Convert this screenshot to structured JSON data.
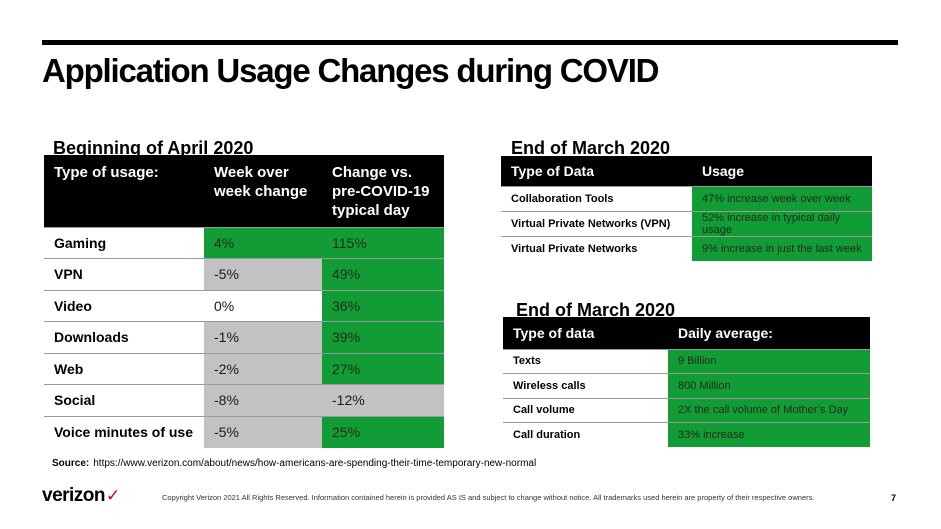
{
  "title": "Application Usage Changes during COVID",
  "april_section": {
    "title": "Beginning of April 2020",
    "headers": [
      "Type of usage:",
      "Week over week change",
      "Change vs. pre-COVID-19 typical day"
    ],
    "rows": [
      {
        "type": "Gaming",
        "wow": "4%",
        "vs": "115%",
        "wow_color": "green",
        "vs_color": "green"
      },
      {
        "type": "VPN",
        "wow": "-5%",
        "vs": "49%",
        "wow_color": "gray",
        "vs_color": "green"
      },
      {
        "type": "Video",
        "wow": "0%",
        "vs": "36%",
        "wow_color": "white",
        "vs_color": "green"
      },
      {
        "type": "Downloads",
        "wow": "-1%",
        "vs": "39%",
        "wow_color": "gray",
        "vs_color": "green"
      },
      {
        "type": "Web",
        "wow": "-2%",
        "vs": "27%",
        "wow_color": "gray",
        "vs_color": "green"
      },
      {
        "type": "Social",
        "wow": "-8%",
        "vs": "-12%",
        "wow_color": "gray",
        "vs_color": "gray"
      },
      {
        "type": "Voice minutes of use",
        "wow": "-5%",
        "vs": "25%",
        "wow_color": "gray",
        "vs_color": "green"
      }
    ]
  },
  "march_data_section": {
    "title": "End of March 2020",
    "headers": [
      "Type of Data",
      "Usage"
    ],
    "rows": [
      {
        "type": "Collaboration Tools",
        "usage": "47% increase week over week"
      },
      {
        "type": "Virtual Private Networks (VPN)",
        "usage": "52% increase in typical daily usage"
      },
      {
        "type": "Virtual Private Networks",
        "usage": "9% increase in just the last week"
      }
    ]
  },
  "march_daily_section": {
    "title": "End of March 2020",
    "headers": [
      "Type of data",
      "Daily average:"
    ],
    "rows": [
      {
        "type": "Texts",
        "value": "9 Billion"
      },
      {
        "type": "Wireless calls",
        "value": "800 Million"
      },
      {
        "type": "Call volume",
        "value": "2X the call volume of Mother’s Day"
      },
      {
        "type": "Call duration",
        "value": "33% increase"
      }
    ]
  },
  "source": {
    "label": "Source:",
    "url": "https://www.verizon.com/about/news/how-americans-are-spending-their-time-temporary-new-normal"
  },
  "footer": {
    "logo_text": "verizon",
    "logo_mark": "✓",
    "copyright": "Copyright Verizon 2021 All Rights Reserved. Information contained herein is provided AS IS and subject to change without notice.  All trademarks used herein are property of their respective owners.",
    "page_number": "7"
  },
  "colors": {
    "green": "#119c36",
    "gray": "#c2c2c2",
    "header_black": "#000000",
    "verizon_red": "#e00000"
  }
}
